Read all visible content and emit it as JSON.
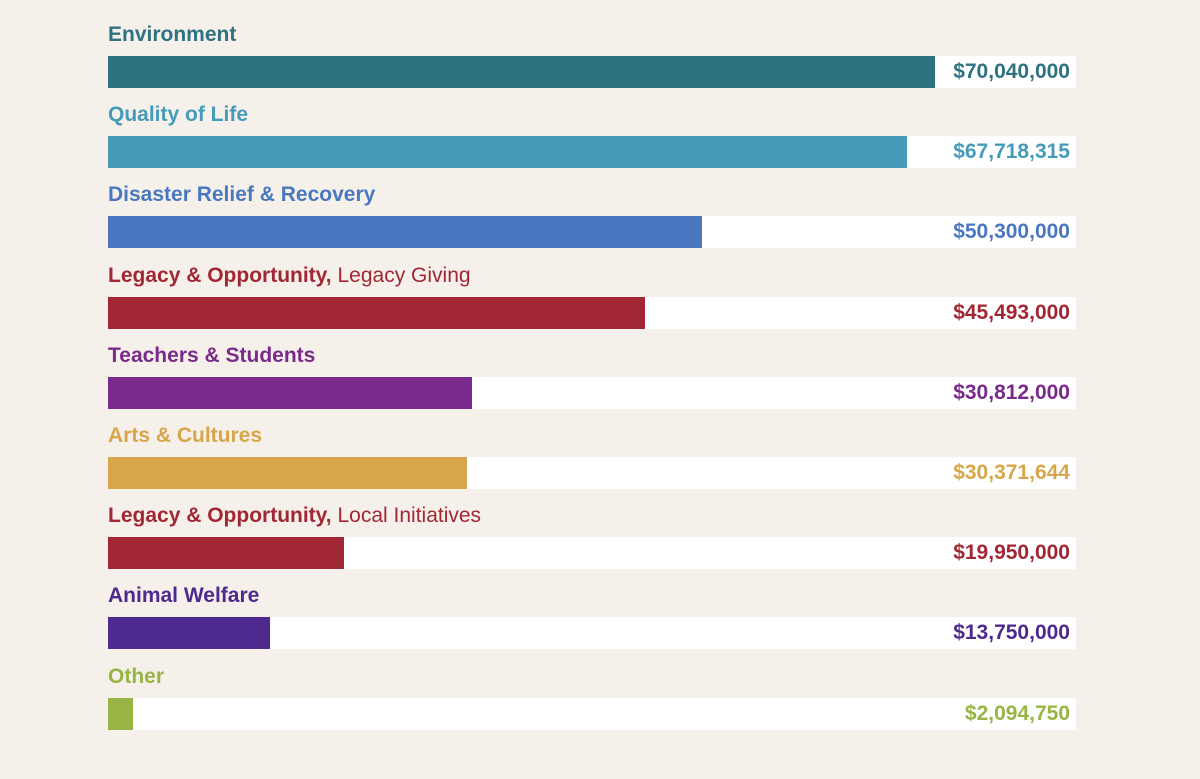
{
  "chart_data": {
    "type": "bar",
    "orientation": "horizontal",
    "xlim": [
      0,
      82000000
    ],
    "grid": false,
    "categories": [
      "Environment",
      "Quality of Life",
      "Disaster Relief & Recovery",
      "Legacy & Opportunity, Legacy Giving",
      "Teachers & Students",
      "Arts & Cultures",
      "Legacy & Opportunity, Local Initiatives",
      "Animal Welfare",
      "Other"
    ],
    "values": [
      70040000,
      67718315,
      50300000,
      45493000,
      30812000,
      30371644,
      19950000,
      13750000,
      2094750
    ],
    "rows": [
      {
        "label": "Environment",
        "sublabel": "",
        "value": 70040000,
        "value_label": "$70,040,000",
        "color": "#2e7282"
      },
      {
        "label": "Quality of Life",
        "sublabel": "",
        "value": 67718315,
        "value_label": "$67,718,315",
        "color": "#469bb9"
      },
      {
        "label": "Disaster Relief & Recovery",
        "sublabel": "",
        "value": 50300000,
        "value_label": "$50,300,000",
        "color": "#4a78c0"
      },
      {
        "label": "Legacy & Opportunity,",
        "sublabel": "Legacy Giving",
        "value": 45493000,
        "value_label": "$45,493,000",
        "color": "#a22735"
      },
      {
        "label": "Teachers & Students",
        "sublabel": "",
        "value": 30812000,
        "value_label": "$30,812,000",
        "color": "#7a2a8a"
      },
      {
        "label": "Arts & Cultures",
        "sublabel": "",
        "value": 30371644,
        "value_label": "$30,371,644",
        "color": "#d8a64a"
      },
      {
        "label": "Legacy & Opportunity,",
        "sublabel": "Local Initiatives",
        "value": 19950000,
        "value_label": "$19,950,000",
        "color": "#a22735"
      },
      {
        "label": "Animal Welfare",
        "sublabel": "",
        "value": 13750000,
        "value_label": "$13,750,000",
        "color": "#4e2a8e"
      },
      {
        "label": "Other",
        "sublabel": "",
        "value": 2094750,
        "value_label": "$2,094,750",
        "color": "#98b445"
      }
    ]
  }
}
